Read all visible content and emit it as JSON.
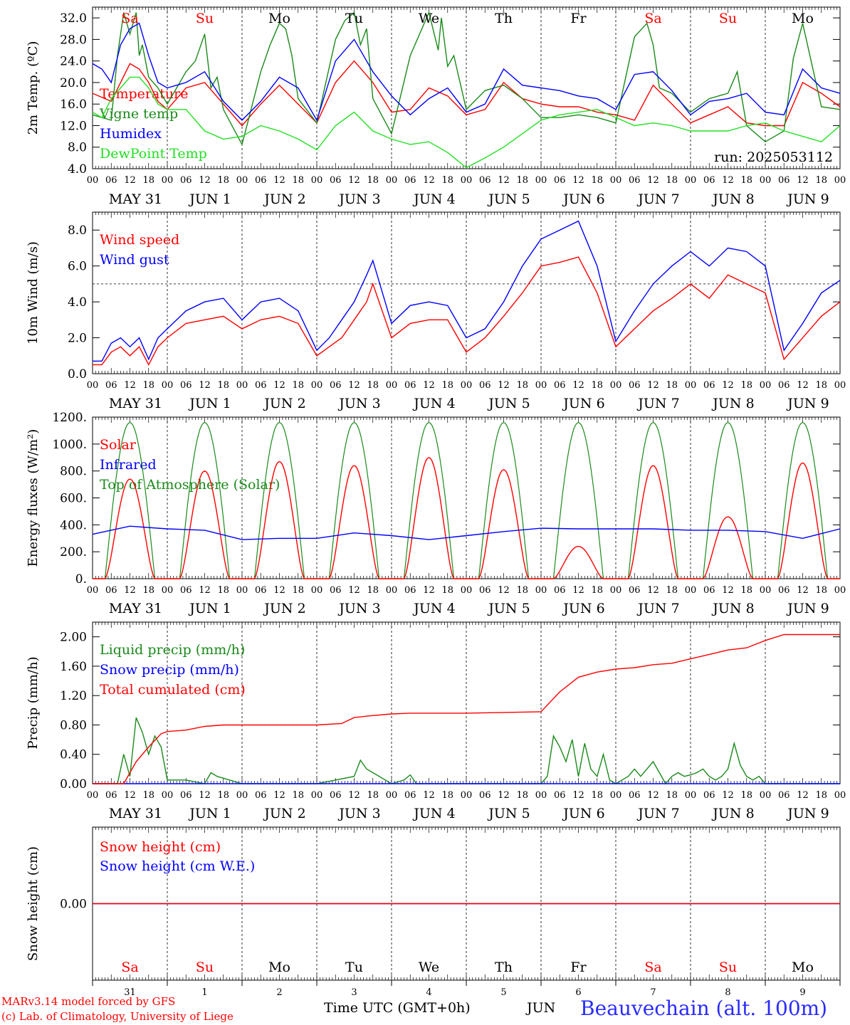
{
  "colors": {
    "red": "#ff0000",
    "green": "#1a8a1a",
    "blue": "#0000ff",
    "light_green": "#22e022",
    "black": "#000000"
  },
  "axis": {
    "hour_labels": [
      "00",
      "06",
      "12",
      "18"
    ],
    "end_label": "00",
    "date_labels": [
      "MAY 31",
      "JUN  1",
      "JUN  2",
      "JUN  3",
      "JUN  4",
      "JUN  5",
      "JUN  6",
      "JUN  7",
      "JUN  8",
      "JUN  9"
    ],
    "weekdays": [
      "Sa",
      "Su",
      "Mo",
      "Tu",
      "We",
      "Th",
      "Fr",
      "Sa",
      "Su",
      "Mo"
    ],
    "weekday_red": [
      true,
      true,
      false,
      false,
      false,
      false,
      false,
      true,
      true,
      false
    ],
    "bottom_days": [
      "31",
      "1",
      "2",
      "3",
      "4",
      "5",
      "6",
      "7",
      "8",
      "9"
    ]
  },
  "chart_data": [
    {
      "type": "line",
      "ylabel": "2m Temp. (ºC)",
      "ylim": [
        4,
        34
      ],
      "yticks": [
        "4.0",
        "8.0",
        "12.0",
        "16.0",
        "20.0",
        "24.0",
        "28.0",
        "32.0"
      ],
      "yvals": [
        4,
        8,
        12,
        16,
        20,
        24,
        28,
        32
      ],
      "x_unit": "hours since 2025-05-31 00 UTC",
      "annotation": "run: 2025053112",
      "series": [
        {
          "name": "Temperature",
          "color": "red",
          "x": [
            0,
            6,
            9,
            12,
            15,
            18,
            21,
            24,
            30,
            36,
            42,
            48,
            54,
            60,
            66,
            72,
            78,
            84,
            90,
            96,
            102,
            108,
            114,
            120,
            126,
            132,
            138,
            144,
            150,
            156,
            162,
            168,
            174,
            180,
            186,
            192,
            198,
            204,
            210,
            216,
            222,
            228,
            234,
            240
          ],
          "y": [
            18,
            16.5,
            20,
            23.5,
            22.5,
            20,
            16.5,
            15,
            19,
            20,
            16,
            12,
            16,
            19.5,
            16,
            12.5,
            20,
            24,
            20,
            14.5,
            15,
            19,
            17.5,
            14,
            15,
            20,
            17,
            16,
            15.5,
            15.5,
            14.5,
            14,
            13,
            19.5,
            16,
            12.5,
            14,
            15.5,
            12.5,
            12,
            12,
            20,
            18,
            15.5
          ]
        },
        {
          "name": "Vigne temp",
          "color": "green",
          "x": [
            0,
            6,
            8,
            10,
            12,
            14,
            15,
            16,
            18,
            21,
            24,
            30,
            33,
            36,
            38,
            40,
            42,
            48,
            54,
            57,
            60,
            62,
            64,
            66,
            72,
            78,
            81,
            84,
            86,
            88,
            90,
            96,
            102,
            108,
            111,
            112,
            114,
            116,
            120,
            126,
            132,
            138,
            144,
            150,
            156,
            162,
            168,
            174,
            178,
            180,
            182,
            186,
            192,
            198,
            201,
            204,
            207,
            210,
            216,
            222,
            225,
            228,
            234,
            240
          ],
          "y": [
            14,
            13,
            25,
            33,
            29,
            33,
            25,
            27,
            21,
            19,
            16,
            22,
            24,
            29,
            19,
            21,
            15,
            8.5,
            22,
            27,
            31,
            30,
            25,
            17,
            12.5,
            28,
            31.5,
            33,
            27,
            30,
            17,
            10.5,
            25,
            33,
            26,
            32,
            23,
            25,
            15,
            18.5,
            19.5,
            17,
            13.5,
            13.5,
            14,
            13.5,
            12.5,
            28.5,
            31,
            27,
            19,
            18,
            14.5,
            17,
            17.5,
            18,
            22,
            12,
            9,
            11,
            24.5,
            31,
            15.5,
            15
          ]
        },
        {
          "name": "Humidex",
          "color": "blue",
          "x": [
            0,
            3,
            6,
            9,
            12,
            15,
            18,
            21,
            24,
            30,
            36,
            42,
            48,
            54,
            60,
            66,
            72,
            78,
            84,
            90,
            96,
            102,
            108,
            114,
            120,
            126,
            132,
            138,
            144,
            150,
            156,
            162,
            168,
            174,
            180,
            186,
            192,
            198,
            204,
            210,
            216,
            222,
            228,
            234,
            240
          ],
          "y": [
            23.5,
            22.5,
            20,
            27,
            30,
            31,
            25,
            20,
            19,
            20,
            22,
            16.5,
            13,
            16.5,
            21,
            19,
            13,
            24,
            28,
            22,
            17.5,
            14,
            17,
            19,
            14.5,
            16,
            22.5,
            19.5,
            19,
            18.5,
            17.5,
            17,
            15,
            21.5,
            22,
            18.5,
            14,
            16.5,
            17,
            18,
            14.5,
            14,
            22.5,
            19,
            18
          ]
        },
        {
          "name": "DewPoint Temp",
          "color": "light_green",
          "x": [
            0,
            3,
            6,
            9,
            12,
            15,
            18,
            21,
            24,
            30,
            36,
            42,
            48,
            54,
            60,
            66,
            72,
            78,
            84,
            90,
            96,
            102,
            108,
            114,
            120,
            126,
            132,
            138,
            144,
            150,
            156,
            162,
            168,
            174,
            180,
            186,
            192,
            198,
            204,
            210,
            216,
            222,
            228,
            234,
            240
          ],
          "y": [
            14.5,
            13.5,
            17,
            19,
            21,
            21,
            19,
            16,
            15,
            15,
            11,
            9.5,
            10,
            12,
            11,
            9.5,
            7.5,
            12,
            14.5,
            11,
            9.5,
            8.5,
            9,
            7,
            4.2,
            6,
            8,
            10.5,
            13,
            14,
            14.5,
            15,
            13.5,
            12,
            12.5,
            12,
            11,
            11,
            11,
            12,
            12.5,
            11,
            10,
            9,
            12
          ]
        }
      ]
    },
    {
      "type": "line",
      "ylabel": "10m Wind (m/s)",
      "ylim": [
        0,
        9
      ],
      "yticks": [
        "0.0",
        "2.0",
        "4.0",
        "6.0",
        "8.0"
      ],
      "yvals": [
        0,
        2,
        4,
        6,
        8
      ],
      "reference_line": 5,
      "series": [
        {
          "name": "Wind speed",
          "color": "red",
          "x": [
            0,
            3,
            6,
            9,
            12,
            15,
            18,
            21,
            24,
            30,
            36,
            42,
            48,
            54,
            60,
            66,
            72,
            76,
            80,
            84,
            88,
            90,
            96,
            102,
            108,
            114,
            120,
            126,
            132,
            138,
            144,
            150,
            156,
            162,
            168,
            174,
            180,
            186,
            192,
            198,
            204,
            210,
            216,
            222,
            228,
            234,
            240
          ],
          "y": [
            0.5,
            0.5,
            1.2,
            1.5,
            1,
            1.5,
            0.5,
            1.5,
            2,
            2.8,
            3,
            3.2,
            2.5,
            3,
            3.2,
            2.8,
            1,
            1.5,
            2,
            3,
            4,
            5,
            2,
            2.8,
            3,
            3,
            1.2,
            2,
            3.2,
            4.5,
            6,
            6.2,
            6.5,
            4.5,
            1.5,
            2.5,
            3.5,
            4.2,
            5,
            4.2,
            5.5,
            5,
            4.5,
            0.8,
            2,
            3.2,
            4
          ]
        },
        {
          "name": "Wind gust",
          "color": "blue",
          "x": [
            0,
            3,
            6,
            9,
            12,
            15,
            18,
            21,
            24,
            30,
            36,
            42,
            48,
            54,
            60,
            66,
            72,
            76,
            80,
            84,
            88,
            90,
            96,
            102,
            108,
            114,
            120,
            126,
            132,
            138,
            144,
            150,
            156,
            162,
            168,
            174,
            180,
            186,
            192,
            198,
            204,
            210,
            216,
            222,
            228,
            234,
            240
          ],
          "y": [
            0.7,
            0.7,
            1.7,
            2,
            1.5,
            2,
            0.8,
            2,
            2.5,
            3.5,
            4,
            4.2,
            3,
            4,
            4.2,
            3.5,
            1.3,
            2,
            3,
            4,
            5.5,
            6.3,
            2.8,
            3.8,
            4,
            3.8,
            2,
            2.5,
            4,
            6,
            7.5,
            8,
            8.5,
            6,
            1.8,
            3.5,
            5,
            6,
            6.8,
            6,
            7,
            6.8,
            6,
            1.3,
            2.8,
            4.5,
            5.2
          ]
        }
      ]
    },
    {
      "type": "line",
      "ylabel": "Energy fluxes (W/m²)",
      "ylim": [
        0,
        1200
      ],
      "yticks": [
        "0.",
        "200.",
        "400.",
        "600.",
        "800.",
        "1000.",
        "1200."
      ],
      "yvals": [
        0,
        200,
        400,
        600,
        800,
        1000,
        1200
      ],
      "series": [
        {
          "name": "Solar",
          "color": "red",
          "peaks": [
            740,
            800,
            870,
            840,
            900,
            810,
            240,
            840,
            460,
            860
          ]
        },
        {
          "name": "Infrared",
          "color": "blue",
          "x": [
            0,
            12,
            24,
            36,
            48,
            60,
            72,
            84,
            96,
            108,
            120,
            132,
            144,
            156,
            168,
            180,
            192,
            204,
            216,
            228,
            240
          ],
          "y": [
            330,
            390,
            370,
            360,
            290,
            300,
            300,
            340,
            320,
            290,
            320,
            350,
            375,
            370,
            370,
            370,
            360,
            360,
            350,
            300,
            370
          ]
        },
        {
          "name": "Top of Atmosphere (Solar)",
          "color": "green",
          "peak": 1160,
          "sunrise_h": 4,
          "sunset_h": 20
        }
      ]
    },
    {
      "type": "line",
      "ylabel": "Precip (mm/h)",
      "ylim": [
        0,
        2.2
      ],
      "yticks": [
        "0.00",
        "0.40",
        "0.80",
        "1.20",
        "1.60",
        "2.00"
      ],
      "yvals": [
        0,
        0.4,
        0.8,
        1.2,
        1.6,
        2
      ],
      "series": [
        {
          "name": "Liquid precip (mm/h)",
          "color": "green",
          "x": [
            0,
            8,
            10,
            12,
            14,
            16,
            18,
            20,
            22,
            24,
            30,
            36,
            38,
            40,
            48,
            72,
            84,
            86,
            88,
            96,
            100,
            102,
            104,
            120,
            144,
            146,
            148,
            150,
            152,
            154,
            156,
            158,
            160,
            162,
            164,
            166,
            168,
            170,
            172,
            174,
            176,
            180,
            184,
            186,
            188,
            190,
            192,
            194,
            196,
            198,
            200,
            202,
            204,
            206,
            208,
            210,
            212,
            214,
            216,
            220,
            224,
            240
          ],
          "y": [
            0,
            0,
            0.4,
            0.1,
            0.9,
            0.7,
            0.4,
            0.65,
            0.5,
            0.05,
            0.05,
            0,
            0.15,
            0.1,
            0,
            0,
            0.1,
            0.32,
            0.2,
            0,
            0.05,
            0.12,
            0,
            0,
            0,
            0.1,
            0.65,
            0.5,
            0.3,
            0.6,
            0.1,
            0.55,
            0.2,
            0.1,
            0.4,
            0.05,
            0,
            0.05,
            0.1,
            0.2,
            0.1,
            0.3,
            0,
            0.1,
            0.15,
            0.1,
            0.12,
            0.15,
            0.2,
            0.1,
            0.05,
            0.1,
            0.2,
            0.55,
            0.25,
            0.1,
            0.05,
            0.1,
            0,
            0,
            0,
            0
          ]
        },
        {
          "name": "Snow precip (mm/h)",
          "color": "blue",
          "x": [
            0,
            240
          ],
          "y": [
            0,
            0
          ]
        },
        {
          "name": "Total cumulated (cm)",
          "color": "red",
          "x": [
            0,
            10,
            14,
            18,
            22,
            24,
            30,
            36,
            42,
            48,
            72,
            80,
            84,
            88,
            96,
            102,
            108,
            120,
            144,
            150,
            156,
            162,
            168,
            174,
            180,
            186,
            192,
            198,
            204,
            210,
            216,
            222,
            240
          ],
          "y": [
            0,
            0,
            0.3,
            0.5,
            0.68,
            0.71,
            0.73,
            0.78,
            0.8,
            0.8,
            0.8,
            0.82,
            0.9,
            0.92,
            0.95,
            0.96,
            0.96,
            0.96,
            0.98,
            1.25,
            1.45,
            1.52,
            1.56,
            1.58,
            1.62,
            1.64,
            1.7,
            1.76,
            1.82,
            1.85,
            1.95,
            2.03,
            2.03
          ]
        }
      ]
    },
    {
      "type": "line",
      "ylabel": "Snow height (cm)",
      "ylim": [
        -1,
        1
      ],
      "yticks": [
        "0.00"
      ],
      "yvals": [
        0
      ],
      "series": [
        {
          "name": "Snow height (cm)",
          "color": "red",
          "x": [
            0,
            240
          ],
          "y": [
            0,
            0
          ]
        },
        {
          "name": "Snow height (cm W.E.)",
          "color": "blue",
          "x": [
            0,
            240
          ],
          "y": [
            0,
            0
          ]
        }
      ]
    }
  ],
  "footer": {
    "model": "MARv3.14 model forced by GFS",
    "copyright": "(c) Lab. of Climatology, University of Liege",
    "time_label": "Time UTC (GMT+0h)",
    "month": "JUN",
    "station": "Beauvechain (alt. 100m)"
  }
}
